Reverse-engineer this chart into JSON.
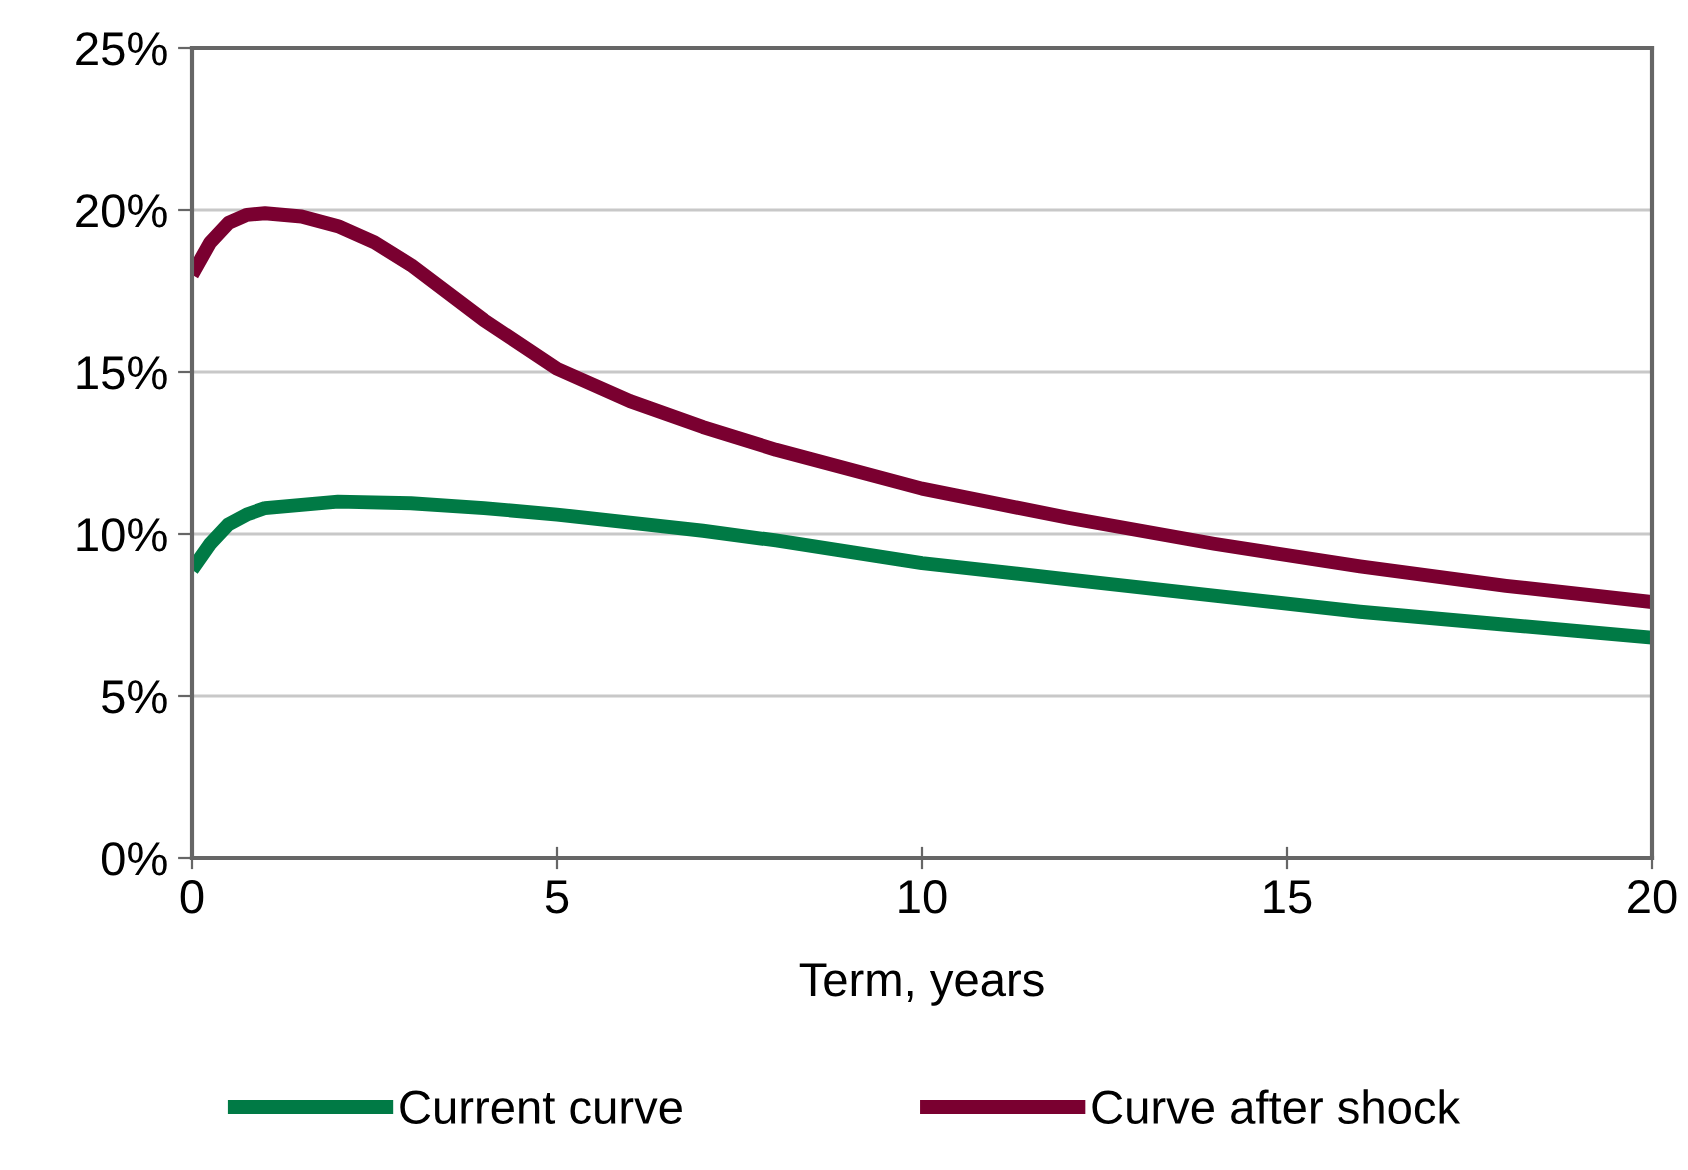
{
  "chart_data": {
    "type": "line",
    "xlabel": "Term, years",
    "xlim": [
      0,
      20
    ],
    "xticks": [
      0,
      5,
      10,
      15,
      20
    ],
    "ylim": [
      0,
      25
    ],
    "yticks": [
      {
        "value": 0,
        "label": "0%"
      },
      {
        "value": 5,
        "label": "5%"
      },
      {
        "value": 10,
        "label": "10%"
      },
      {
        "value": 15,
        "label": "15%"
      },
      {
        "value": 20,
        "label": "20%"
      },
      {
        "value": 25,
        "label": "25%"
      }
    ],
    "grid": "y",
    "legend": "bottom",
    "marker": "none",
    "line_style": "solid",
    "series": [
      {
        "name": "Current curve",
        "color": "#007a45",
        "x": [
          0,
          0.25,
          0.5,
          0.75,
          1,
          1.5,
          2,
          3,
          4,
          5,
          6,
          7,
          8,
          10,
          12,
          14,
          16,
          18,
          20
        ],
        "values": [
          8.9,
          9.7,
          10.3,
          10.6,
          10.8,
          10.9,
          11.0,
          10.95,
          10.8,
          10.6,
          10.35,
          10.1,
          9.8,
          9.1,
          8.6,
          8.1,
          7.6,
          7.2,
          6.8
        ]
      },
      {
        "name": "Curve after shock",
        "color": "#7a0030",
        "x": [
          0,
          0.25,
          0.5,
          0.75,
          1,
          1.5,
          2,
          2.5,
          3,
          4,
          5,
          6,
          7,
          8,
          10,
          12,
          14,
          16,
          18,
          20
        ],
        "values": [
          18.0,
          19.0,
          19.6,
          19.85,
          19.9,
          19.8,
          19.5,
          19.0,
          18.3,
          16.6,
          15.1,
          14.1,
          13.3,
          12.6,
          11.4,
          10.5,
          9.7,
          9.0,
          8.4,
          7.9
        ]
      }
    ]
  }
}
